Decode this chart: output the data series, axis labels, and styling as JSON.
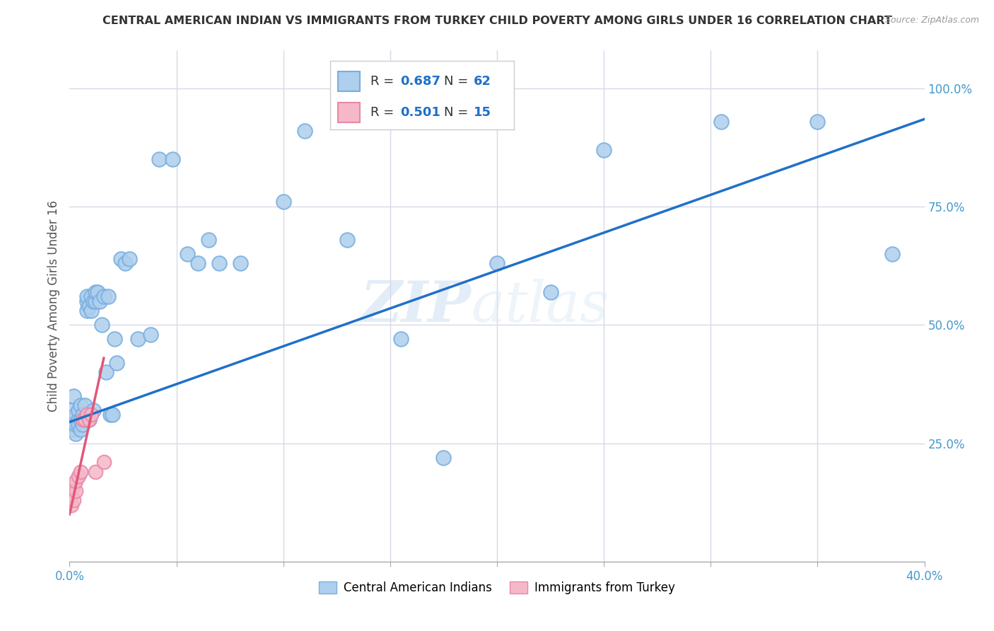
{
  "title": "CENTRAL AMERICAN INDIAN VS IMMIGRANTS FROM TURKEY CHILD POVERTY AMONG GIRLS UNDER 16 CORRELATION CHART",
  "source": "Source: ZipAtlas.com",
  "ylabel": "Child Poverty Among Girls Under 16",
  "watermark_zip": "ZIP",
  "watermark_atlas": "atlas",
  "xlim": [
    0.0,
    0.4
  ],
  "ylim": [
    0.0,
    1.08
  ],
  "xticks": [
    0.0,
    0.05,
    0.1,
    0.15,
    0.2,
    0.25,
    0.3,
    0.35,
    0.4
  ],
  "xticklabels": [
    "0.0%",
    "",
    "",
    "",
    "",
    "",
    "",
    "",
    "40.0%"
  ],
  "yticks": [
    0.0,
    0.25,
    0.5,
    0.75,
    1.0
  ],
  "yticklabels": [
    "",
    "25.0%",
    "50.0%",
    "75.0%",
    "100.0%"
  ],
  "blue_R": 0.687,
  "blue_N": 62,
  "pink_R": 0.501,
  "pink_N": 15,
  "blue_color": "#aecfed",
  "blue_edge": "#7aaee0",
  "pink_color": "#f5b8c8",
  "pink_edge": "#e888a8",
  "blue_line_color": "#2070c8",
  "pink_line_color": "#e05878",
  "ref_line_color": "#ccccdd",
  "grid_color": "#d8d8e8",
  "background_color": "#ffffff",
  "blue_scatter_x": [
    0.001,
    0.001,
    0.002,
    0.002,
    0.002,
    0.003,
    0.003,
    0.003,
    0.004,
    0.004,
    0.004,
    0.005,
    0.005,
    0.005,
    0.006,
    0.006,
    0.007,
    0.007,
    0.008,
    0.008,
    0.008,
    0.009,
    0.009,
    0.01,
    0.01,
    0.011,
    0.011,
    0.012,
    0.012,
    0.013,
    0.014,
    0.015,
    0.016,
    0.017,
    0.018,
    0.019,
    0.02,
    0.021,
    0.022,
    0.024,
    0.026,
    0.028,
    0.032,
    0.038,
    0.042,
    0.048,
    0.055,
    0.06,
    0.065,
    0.07,
    0.08,
    0.1,
    0.11,
    0.13,
    0.155,
    0.175,
    0.2,
    0.225,
    0.25,
    0.305,
    0.35,
    0.385
  ],
  "blue_scatter_y": [
    0.3,
    0.32,
    0.28,
    0.3,
    0.35,
    0.27,
    0.29,
    0.31,
    0.3,
    0.29,
    0.32,
    0.28,
    0.3,
    0.33,
    0.31,
    0.29,
    0.3,
    0.33,
    0.53,
    0.55,
    0.56,
    0.54,
    0.3,
    0.53,
    0.56,
    0.55,
    0.32,
    0.55,
    0.57,
    0.57,
    0.55,
    0.5,
    0.56,
    0.4,
    0.56,
    0.31,
    0.31,
    0.47,
    0.42,
    0.64,
    0.63,
    0.64,
    0.47,
    0.48,
    0.85,
    0.85,
    0.65,
    0.63,
    0.68,
    0.63,
    0.63,
    0.76,
    0.91,
    0.68,
    0.47,
    0.22,
    0.63,
    0.57,
    0.87,
    0.93,
    0.93,
    0.65
  ],
  "pink_scatter_x": [
    0.001,
    0.001,
    0.002,
    0.002,
    0.003,
    0.003,
    0.004,
    0.005,
    0.006,
    0.007,
    0.008,
    0.009,
    0.01,
    0.012,
    0.016
  ],
  "pink_scatter_y": [
    0.12,
    0.14,
    0.13,
    0.16,
    0.15,
    0.17,
    0.18,
    0.19,
    0.3,
    0.3,
    0.31,
    0.3,
    0.31,
    0.19,
    0.21
  ],
  "blue_line_x": [
    0.0,
    0.4
  ],
  "blue_line_y": [
    0.295,
    0.935
  ],
  "pink_line_x": [
    0.0,
    0.016
  ],
  "pink_line_y": [
    0.1,
    0.43
  ],
  "ref_line_x": [
    0.0,
    0.4
  ],
  "ref_line_y": [
    0.295,
    0.935
  ]
}
